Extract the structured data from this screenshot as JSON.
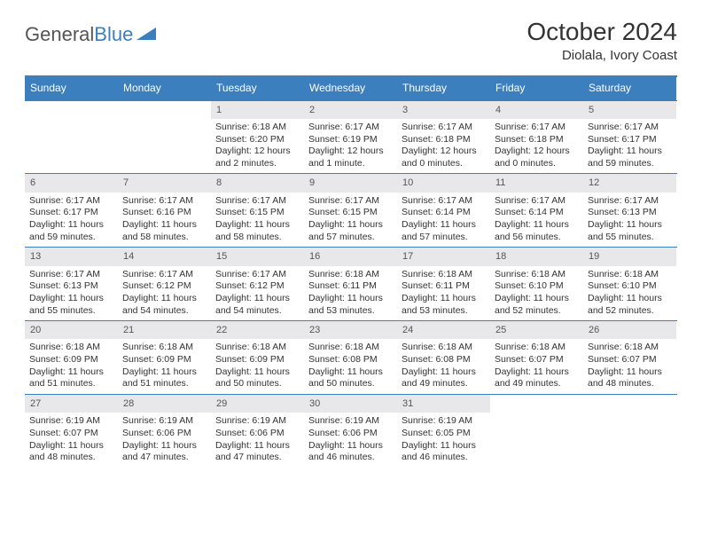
{
  "logo": {
    "part1": "General",
    "part2": "Blue"
  },
  "title": "October 2024",
  "location": "Diolala, Ivory Coast",
  "weekdays": [
    "Sunday",
    "Monday",
    "Tuesday",
    "Wednesday",
    "Thursday",
    "Friday",
    "Saturday"
  ],
  "colors": {
    "accent": "#3b7fbf",
    "daynum_bg": "#e8e8ea",
    "text": "#333333",
    "muted": "#555555"
  },
  "weeks": [
    {
      "nums": [
        "",
        "",
        "1",
        "2",
        "3",
        "4",
        "5"
      ],
      "cells": [
        null,
        null,
        {
          "sr": "Sunrise: 6:18 AM",
          "ss": "Sunset: 6:20 PM",
          "d1": "Daylight: 12 hours",
          "d2": "and 2 minutes."
        },
        {
          "sr": "Sunrise: 6:17 AM",
          "ss": "Sunset: 6:19 PM",
          "d1": "Daylight: 12 hours",
          "d2": "and 1 minute."
        },
        {
          "sr": "Sunrise: 6:17 AM",
          "ss": "Sunset: 6:18 PM",
          "d1": "Daylight: 12 hours",
          "d2": "and 0 minutes."
        },
        {
          "sr": "Sunrise: 6:17 AM",
          "ss": "Sunset: 6:18 PM",
          "d1": "Daylight: 12 hours",
          "d2": "and 0 minutes."
        },
        {
          "sr": "Sunrise: 6:17 AM",
          "ss": "Sunset: 6:17 PM",
          "d1": "Daylight: 11 hours",
          "d2": "and 59 minutes."
        }
      ]
    },
    {
      "nums": [
        "6",
        "7",
        "8",
        "9",
        "10",
        "11",
        "12"
      ],
      "cells": [
        {
          "sr": "Sunrise: 6:17 AM",
          "ss": "Sunset: 6:17 PM",
          "d1": "Daylight: 11 hours",
          "d2": "and 59 minutes."
        },
        {
          "sr": "Sunrise: 6:17 AM",
          "ss": "Sunset: 6:16 PM",
          "d1": "Daylight: 11 hours",
          "d2": "and 58 minutes."
        },
        {
          "sr": "Sunrise: 6:17 AM",
          "ss": "Sunset: 6:15 PM",
          "d1": "Daylight: 11 hours",
          "d2": "and 58 minutes."
        },
        {
          "sr": "Sunrise: 6:17 AM",
          "ss": "Sunset: 6:15 PM",
          "d1": "Daylight: 11 hours",
          "d2": "and 57 minutes."
        },
        {
          "sr": "Sunrise: 6:17 AM",
          "ss": "Sunset: 6:14 PM",
          "d1": "Daylight: 11 hours",
          "d2": "and 57 minutes."
        },
        {
          "sr": "Sunrise: 6:17 AM",
          "ss": "Sunset: 6:14 PM",
          "d1": "Daylight: 11 hours",
          "d2": "and 56 minutes."
        },
        {
          "sr": "Sunrise: 6:17 AM",
          "ss": "Sunset: 6:13 PM",
          "d1": "Daylight: 11 hours",
          "d2": "and 55 minutes."
        }
      ]
    },
    {
      "nums": [
        "13",
        "14",
        "15",
        "16",
        "17",
        "18",
        "19"
      ],
      "cells": [
        {
          "sr": "Sunrise: 6:17 AM",
          "ss": "Sunset: 6:13 PM",
          "d1": "Daylight: 11 hours",
          "d2": "and 55 minutes."
        },
        {
          "sr": "Sunrise: 6:17 AM",
          "ss": "Sunset: 6:12 PM",
          "d1": "Daylight: 11 hours",
          "d2": "and 54 minutes."
        },
        {
          "sr": "Sunrise: 6:17 AM",
          "ss": "Sunset: 6:12 PM",
          "d1": "Daylight: 11 hours",
          "d2": "and 54 minutes."
        },
        {
          "sr": "Sunrise: 6:18 AM",
          "ss": "Sunset: 6:11 PM",
          "d1": "Daylight: 11 hours",
          "d2": "and 53 minutes."
        },
        {
          "sr": "Sunrise: 6:18 AM",
          "ss": "Sunset: 6:11 PM",
          "d1": "Daylight: 11 hours",
          "d2": "and 53 minutes."
        },
        {
          "sr": "Sunrise: 6:18 AM",
          "ss": "Sunset: 6:10 PM",
          "d1": "Daylight: 11 hours",
          "d2": "and 52 minutes."
        },
        {
          "sr": "Sunrise: 6:18 AM",
          "ss": "Sunset: 6:10 PM",
          "d1": "Daylight: 11 hours",
          "d2": "and 52 minutes."
        }
      ]
    },
    {
      "nums": [
        "20",
        "21",
        "22",
        "23",
        "24",
        "25",
        "26"
      ],
      "cells": [
        {
          "sr": "Sunrise: 6:18 AM",
          "ss": "Sunset: 6:09 PM",
          "d1": "Daylight: 11 hours",
          "d2": "and 51 minutes."
        },
        {
          "sr": "Sunrise: 6:18 AM",
          "ss": "Sunset: 6:09 PM",
          "d1": "Daylight: 11 hours",
          "d2": "and 51 minutes."
        },
        {
          "sr": "Sunrise: 6:18 AM",
          "ss": "Sunset: 6:09 PM",
          "d1": "Daylight: 11 hours",
          "d2": "and 50 minutes."
        },
        {
          "sr": "Sunrise: 6:18 AM",
          "ss": "Sunset: 6:08 PM",
          "d1": "Daylight: 11 hours",
          "d2": "and 50 minutes."
        },
        {
          "sr": "Sunrise: 6:18 AM",
          "ss": "Sunset: 6:08 PM",
          "d1": "Daylight: 11 hours",
          "d2": "and 49 minutes."
        },
        {
          "sr": "Sunrise: 6:18 AM",
          "ss": "Sunset: 6:07 PM",
          "d1": "Daylight: 11 hours",
          "d2": "and 49 minutes."
        },
        {
          "sr": "Sunrise: 6:18 AM",
          "ss": "Sunset: 6:07 PM",
          "d1": "Daylight: 11 hours",
          "d2": "and 48 minutes."
        }
      ]
    },
    {
      "nums": [
        "27",
        "28",
        "29",
        "30",
        "31",
        "",
        ""
      ],
      "cells": [
        {
          "sr": "Sunrise: 6:19 AM",
          "ss": "Sunset: 6:07 PM",
          "d1": "Daylight: 11 hours",
          "d2": "and 48 minutes."
        },
        {
          "sr": "Sunrise: 6:19 AM",
          "ss": "Sunset: 6:06 PM",
          "d1": "Daylight: 11 hours",
          "d2": "and 47 minutes."
        },
        {
          "sr": "Sunrise: 6:19 AM",
          "ss": "Sunset: 6:06 PM",
          "d1": "Daylight: 11 hours",
          "d2": "and 47 minutes."
        },
        {
          "sr": "Sunrise: 6:19 AM",
          "ss": "Sunset: 6:06 PM",
          "d1": "Daylight: 11 hours",
          "d2": "and 46 minutes."
        },
        {
          "sr": "Sunrise: 6:19 AM",
          "ss": "Sunset: 6:05 PM",
          "d1": "Daylight: 11 hours",
          "d2": "and 46 minutes."
        },
        null,
        null
      ]
    }
  ]
}
